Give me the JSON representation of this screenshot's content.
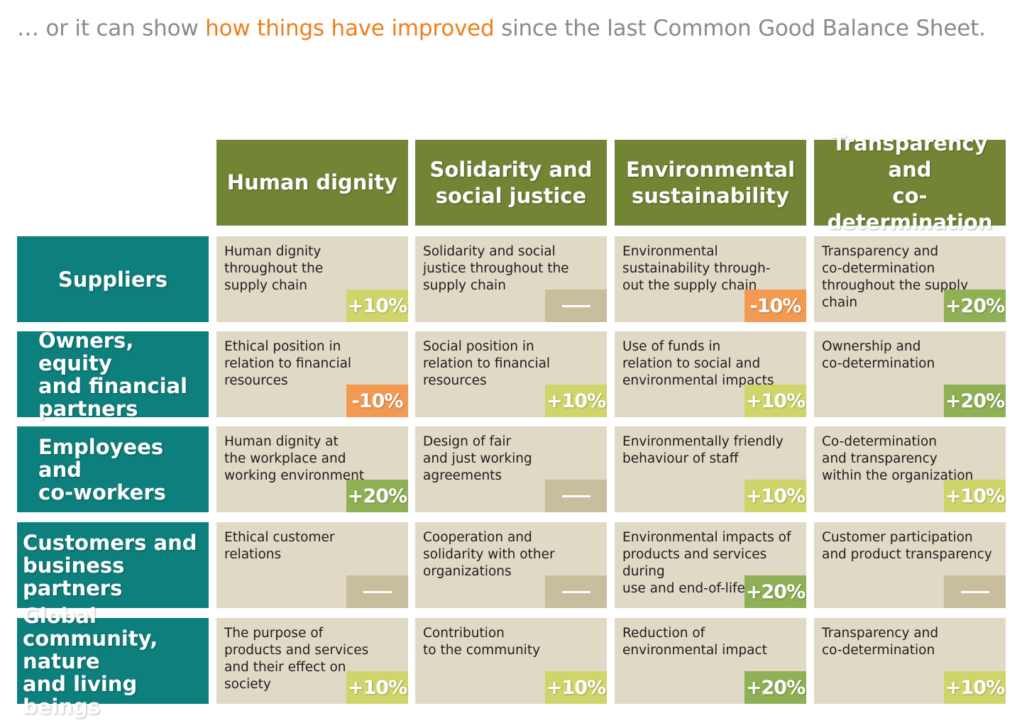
{
  "headline": {
    "prefix": "… or it can show ",
    "highlight": "how things have improved",
    "suffix": " since the last Common Good Balance Sheet."
  },
  "colors": {
    "column_header": "#728535",
    "row_header": "#0d7f7d",
    "cell": "#dfd9c5",
    "highlight": "#f07d1a",
    "badge_plus10": "#cfd56a",
    "badge_plus20": "#8fb055",
    "badge_minus": "#f29a52",
    "badge_none": "#c6be9c"
  },
  "columns": [
    "Human dignity",
    "Solidarity and social justice",
    "Environmental sustainability",
    "Transparency and co-determination"
  ],
  "columns_lines": [
    [
      "Human dignity"
    ],
    [
      "Solidarity and",
      "social justice"
    ],
    [
      "Environmental",
      "sustainability"
    ],
    [
      "Transparency and",
      "co-determination"
    ]
  ],
  "rows": [
    {
      "label_lines": [
        "Suppliers"
      ],
      "cells": [
        {
          "lines": [
            "Human dignity",
            "throughout the",
            "supply chain"
          ],
          "change": "+10%"
        },
        {
          "lines": [
            "Solidarity and social",
            "justice throughout the",
            "supply chain"
          ],
          "change": "—"
        },
        {
          "lines": [
            "Environmental",
            "sustainability through-",
            "out the supply chain"
          ],
          "change": "-10%"
        },
        {
          "lines": [
            "Transparency and",
            "co-determination",
            "throughout the supply",
            "chain"
          ],
          "change": "+20%"
        }
      ]
    },
    {
      "label_lines": [
        "Owners, equity",
        "and financial",
        "partners"
      ],
      "cells": [
        {
          "lines": [
            "Ethical position in",
            "relation to financial",
            "resources"
          ],
          "change": "-10%"
        },
        {
          "lines": [
            "Social position in",
            "relation to financial",
            "resources"
          ],
          "change": "+10%"
        },
        {
          "lines": [
            "Use of funds in",
            "relation to social and",
            "environmental impacts"
          ],
          "change": "+10%"
        },
        {
          "lines": [
            "Ownership and",
            "co-determination"
          ],
          "change": "+20%"
        }
      ]
    },
    {
      "label_lines": [
        "Employees and",
        "co-workers"
      ],
      "cells": [
        {
          "lines": [
            "Human dignity at",
            "the workplace and",
            "working environment"
          ],
          "change": "+20%"
        },
        {
          "lines": [
            "Design of fair",
            "and just working",
            "agreements"
          ],
          "change": "—"
        },
        {
          "lines": [
            "Environmentally friendly",
            "behaviour of staff"
          ],
          "change": "+10%"
        },
        {
          "lines": [
            "Co-determination",
            "and transparency",
            "within the organization"
          ],
          "change": "+10%"
        }
      ]
    },
    {
      "label_lines": [
        "Customers and",
        "business partners"
      ],
      "cells": [
        {
          "lines": [
            "Ethical customer",
            "relations"
          ],
          "change": "—"
        },
        {
          "lines": [
            "Cooperation and",
            "solidarity with other",
            "organizations"
          ],
          "change": "—"
        },
        {
          "lines": [
            "Environmental impacts of",
            "products and services during",
            "use and end-of-life"
          ],
          "change": "+20%"
        },
        {
          "lines": [
            "Customer participation",
            "and product transparency"
          ],
          "change": "—"
        }
      ]
    },
    {
      "label_lines": [
        "Global",
        "community, nature",
        "and living beings"
      ],
      "cells": [
        {
          "lines": [
            "The purpose of",
            "products and services",
            "and their effect on",
            "society"
          ],
          "change": "+10%"
        },
        {
          "lines": [
            "Contribution",
            "to the community"
          ],
          "change": "+10%"
        },
        {
          "lines": [
            "Reduction of",
            "environmental impact"
          ],
          "change": "+20%"
        },
        {
          "lines": [
            "Transparency and",
            "co-determination"
          ],
          "change": "+10%"
        }
      ]
    }
  ]
}
